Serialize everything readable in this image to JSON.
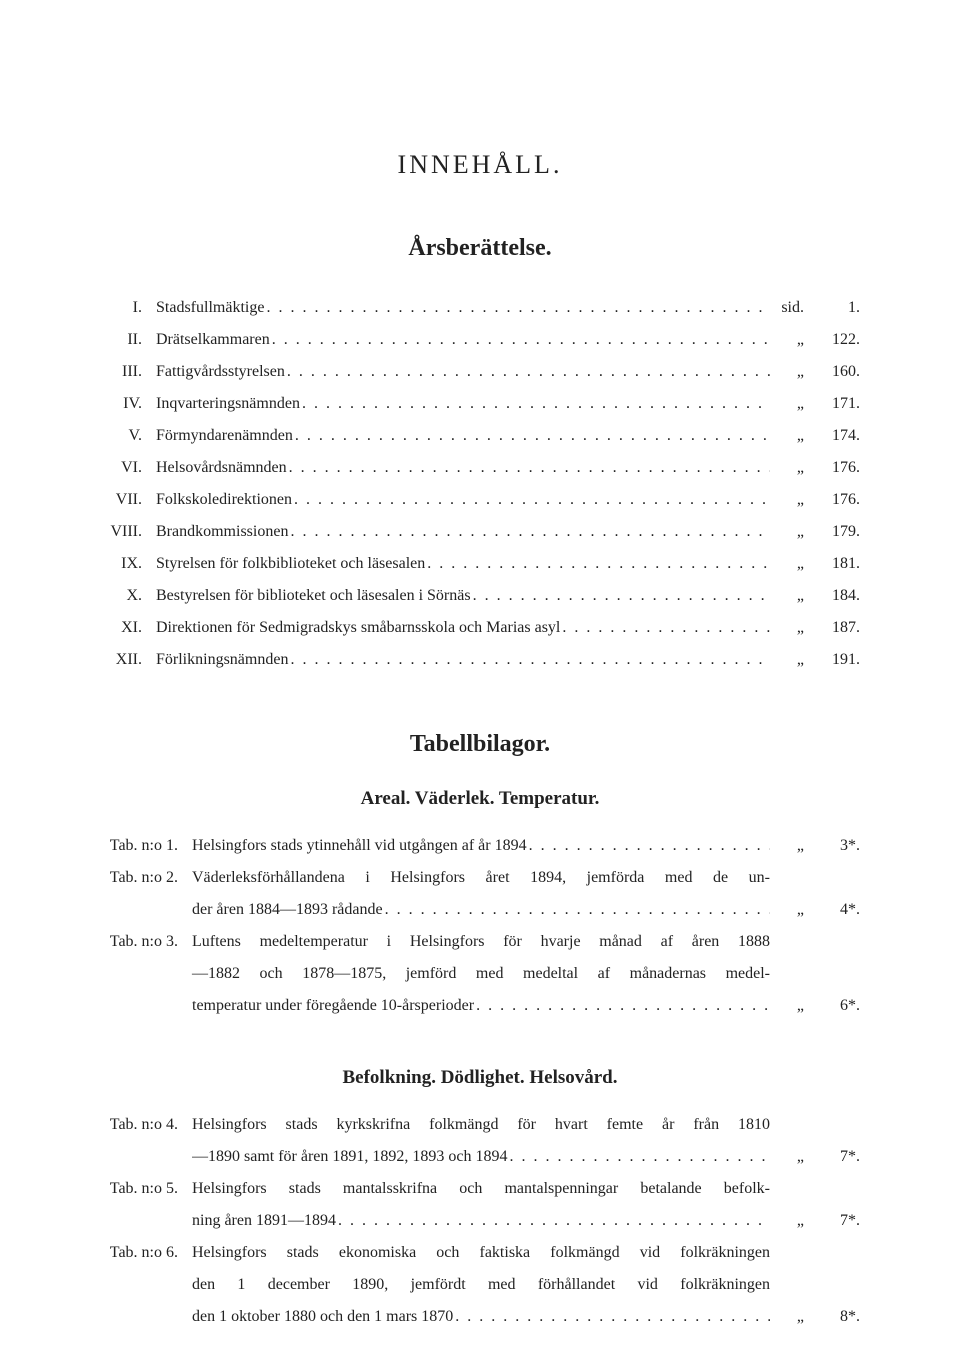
{
  "title": "INNEHÅLL.",
  "sections": {
    "arsberattelse": {
      "heading": "Årsberättelse.",
      "rows": [
        {
          "num": "I.",
          "label": "Stadsfullmäktige",
          "unit": "sid.",
          "page": "1."
        },
        {
          "num": "II.",
          "label": "Drätselkammaren",
          "unit": "„",
          "page": "122."
        },
        {
          "num": "III.",
          "label": "Fattigvårdsstyrelsen",
          "unit": "„",
          "page": "160."
        },
        {
          "num": "IV.",
          "label": "Inqvarteringsnämnden",
          "unit": "„",
          "page": "171."
        },
        {
          "num": "V.",
          "label": "Förmyndarenämnden",
          "unit": "„",
          "page": "174."
        },
        {
          "num": "VI.",
          "label": "Helsovårdsnämnden",
          "unit": "„",
          "page": "176."
        },
        {
          "num": "VII.",
          "label": "Folkskoledirektionen",
          "unit": "„",
          "page": "176."
        },
        {
          "num": "VIII.",
          "label": "Brandkommissionen",
          "unit": "„",
          "page": "179."
        },
        {
          "num": "IX.",
          "label": "Styrelsen för folkbiblioteket och läsesalen",
          "unit": "„",
          "page": "181."
        },
        {
          "num": "X.",
          "label": "Bestyrelsen för biblioteket och läsesalen i Sörnäs",
          "unit": "„",
          "page": "184."
        },
        {
          "num": "XI.",
          "label": "Direktionen för Sedmigradskys småbarnsskola och Marias asyl",
          "unit": "„",
          "page": "187."
        },
        {
          "num": "XII.",
          "label": "Förlikningsnämnden",
          "unit": "„",
          "page": "191."
        }
      ]
    },
    "tabellbilagor": {
      "heading": "Tabellbilagor.",
      "sub1": {
        "heading": "Areal.   Väderlek.   Temperatur.",
        "rows": [
          {
            "num": "Tab. n:o 1.",
            "lines": [
              "Helsingfors stads ytinnehåll vid utgången af år 1894"
            ],
            "unit": "„",
            "page": "3*."
          },
          {
            "num": "Tab. n:o 2.",
            "lines": [
              "Väderleksförhållandena i Helsingfors året 1894, jemförda med de un-",
              "der åren 1884—1893 rådande"
            ],
            "unit": "„",
            "page": "4*."
          },
          {
            "num": "Tab. n:o 3.",
            "lines": [
              "Luftens medeltemperatur i Helsingfors för hvarje månad af åren 1888",
              "—1882 och 1878—1875, jemförd med medeltal af månadernas medel-",
              "temperatur under föregående 10-årsperioder"
            ],
            "unit": "„",
            "page": "6*."
          }
        ]
      },
      "sub2": {
        "heading": "Befolkning.   Dödlighet.   Helsovård.",
        "rows": [
          {
            "num": "Tab. n:o 4.",
            "lines": [
              "Helsingfors stads kyrkskrifna folkmängd för hvart femte år från 1810",
              "—1890 samt för åren 1891, 1892, 1893 och 1894"
            ],
            "unit": "„",
            "page": "7*."
          },
          {
            "num": "Tab. n:o 5.",
            "lines": [
              "Helsingfors stads mantalsskrifna och mantalspenningar betalande befolk-",
              "ning åren 1891—1894"
            ],
            "unit": "„",
            "page": "7*."
          },
          {
            "num": "Tab. n:o 6.",
            "lines": [
              "Helsingfors stads ekonomiska och faktiska folkmängd vid folkräkningen",
              "den 1 december 1890, jemfördt med förhållandet vid folkräkningen",
              "den 1 oktober 1880 och den 1 mars 1870"
            ],
            "unit": "„",
            "page": "8*."
          }
        ]
      }
    }
  }
}
